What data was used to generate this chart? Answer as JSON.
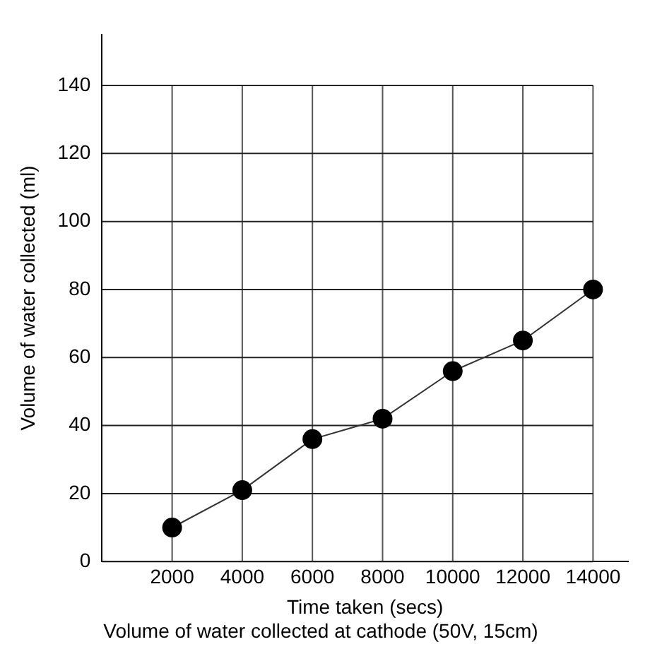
{
  "chart_data": {
    "type": "line",
    "title": "Volume of water collected at cathode (50V, 15cm)",
    "xlabel": "Time taken (secs)",
    "ylabel": "Volume of water collected (ml)",
    "x": [
      2000,
      4000,
      6000,
      8000,
      10000,
      12000,
      14000
    ],
    "series": [
      {
        "color": "#000000",
        "values": [
          10,
          21,
          36,
          42,
          56,
          65,
          80
        ]
      }
    ],
    "xlim": [
      0,
      15000
    ],
    "xticks": [
      2000,
      4000,
      6000,
      8000,
      10000,
      12000,
      14000
    ],
    "ylim": [
      0,
      155
    ],
    "yticks": [
      0,
      20,
      40,
      60,
      80,
      100,
      120,
      140
    ],
    "grid": true,
    "legend": false,
    "marker": "circle",
    "line_style": "solid"
  }
}
